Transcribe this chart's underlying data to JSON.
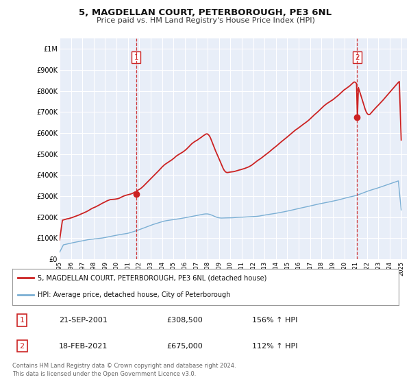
{
  "title": "5, MAGDELLAN COURT, PETERBOROUGH, PE3 6NL",
  "subtitle": "Price paid vs. HM Land Registry's House Price Index (HPI)",
  "background_color": "#e8eef8",
  "plot_bg_color": "#e8eef8",
  "grid_color": "#ffffff",
  "hpi_color": "#7bafd4",
  "property_color": "#cc2222",
  "sale1_date": 2001.72,
  "sale1_price": 308500,
  "sale1_label": "1",
  "sale2_date": 2021.12,
  "sale2_price": 675000,
  "sale2_label": "2",
  "xmin": 1995,
  "xmax": 2025.5,
  "ymin": 0,
  "ymax": 1050000,
  "yticks": [
    0,
    100000,
    200000,
    300000,
    400000,
    500000,
    600000,
    700000,
    800000,
    900000,
    1000000
  ],
  "ytick_labels": [
    "£0",
    "£100K",
    "£200K",
    "£300K",
    "£400K",
    "£500K",
    "£600K",
    "£700K",
    "£800K",
    "£900K",
    "£1M"
  ],
  "xticks": [
    1995,
    1996,
    1997,
    1998,
    1999,
    2000,
    2001,
    2002,
    2003,
    2004,
    2005,
    2006,
    2007,
    2008,
    2009,
    2010,
    2011,
    2012,
    2013,
    2014,
    2015,
    2016,
    2017,
    2018,
    2019,
    2020,
    2021,
    2022,
    2023,
    2024,
    2025
  ],
  "legend_property": "5, MAGDELLAN COURT, PETERBOROUGH, PE3 6NL (detached house)",
  "legend_hpi": "HPI: Average price, detached house, City of Peterborough",
  "annot1_date": "21-SEP-2001",
  "annot1_price": "£308,500",
  "annot1_hpi": "156% ↑ HPI",
  "annot2_date": "18-FEB-2021",
  "annot2_price": "£675,000",
  "annot2_hpi": "112% ↑ HPI",
  "footer1": "Contains HM Land Registry data © Crown copyright and database right 2024.",
  "footer2": "This data is licensed under the Open Government Licence v3.0."
}
